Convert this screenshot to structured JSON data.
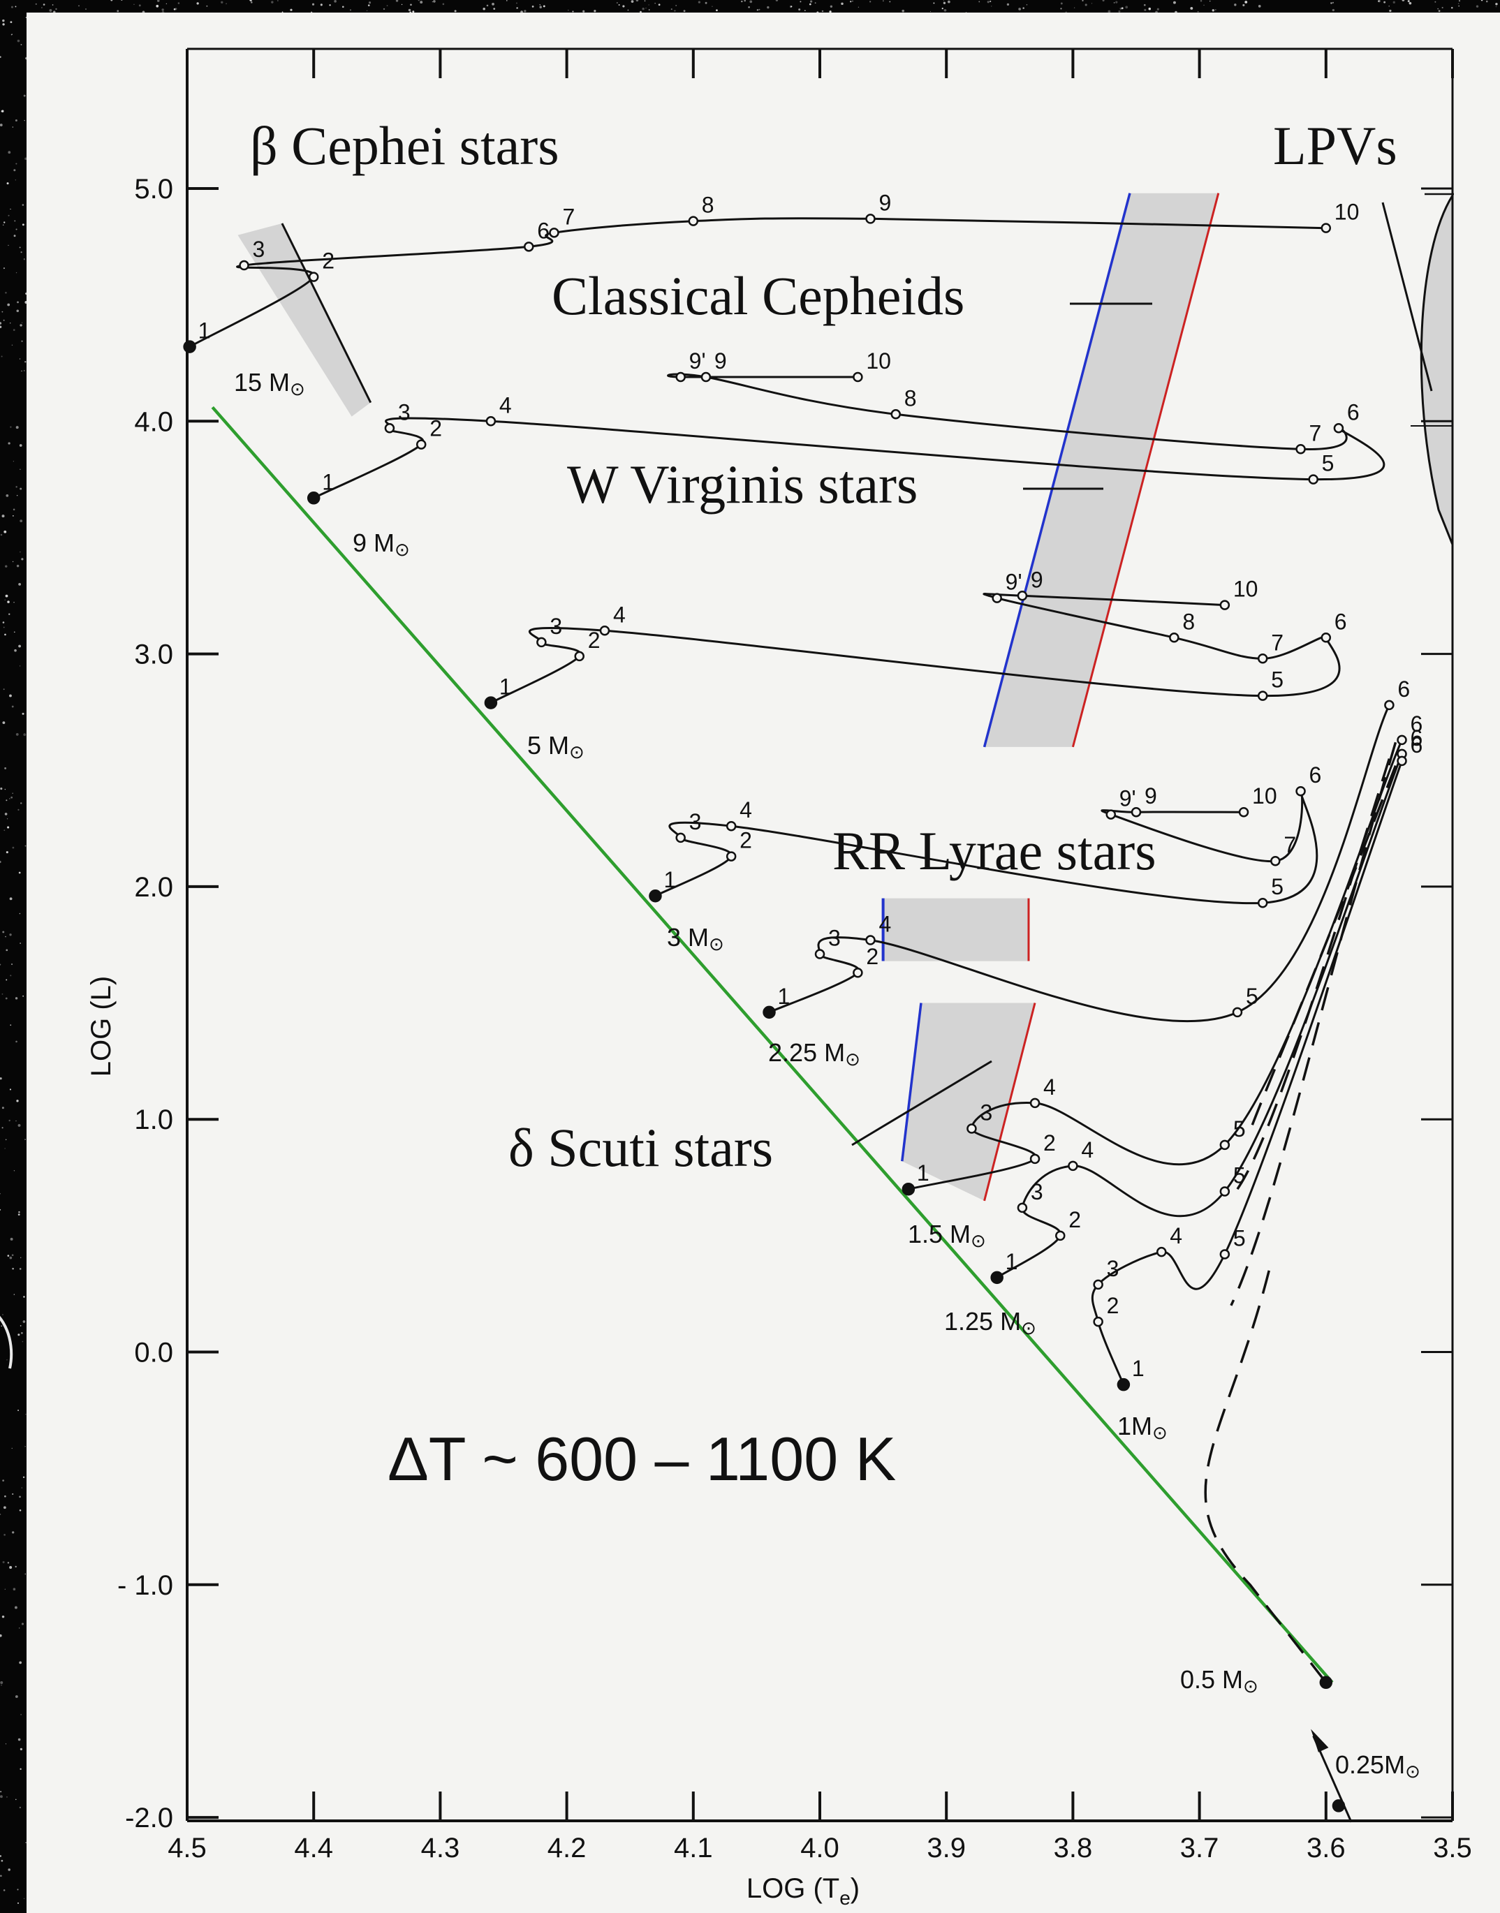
{
  "chart_data": {
    "type": "scatter",
    "xlabel": "LOG (T",
    "xlabel_sub": "e",
    "xlabel_close": ")",
    "ylabel": "LOG (L)",
    "x_reversed": true,
    "xlim": [
      4.5,
      3.5
    ],
    "ylim": [
      -2.0,
      5.0
    ],
    "x_ticks": [
      "4.5",
      "4.4",
      "4.3",
      "4.2",
      "4.1",
      "4.0",
      "3.9",
      "3.8",
      "3.7",
      "3.6",
      "3.5"
    ],
    "y_ticks": [
      "5.0",
      "4.0",
      "3.0",
      "2.0",
      "1.0",
      "0.0",
      "- 1.0",
      "-2.0"
    ],
    "annotation": "ΔT ~ 600 – 1100 K",
    "colors": {
      "zams": "#2e9e2e",
      "blue_edge": "#2233cc",
      "red_edge": "#cc2222",
      "strip": "#d4d4d4",
      "curve": "#111111"
    },
    "regions": [
      {
        "label": "β Cephei stars",
        "polygon": [
          [
            4.46,
            4.8
          ],
          [
            4.425,
            4.85
          ],
          [
            4.355,
            4.08
          ],
          [
            4.37,
            4.02
          ]
        ]
      },
      {
        "label": "Classical Cepheids",
        "polygon": [
          [
            3.87,
            2.6
          ],
          [
            3.755,
            4.98
          ],
          [
            3.685,
            4.98
          ],
          [
            3.8,
            2.6
          ]
        ]
      },
      {
        "label": "RR Lyrae stars",
        "polygon": [
          [
            3.95,
            1.95
          ],
          [
            3.835,
            1.95
          ],
          [
            3.835,
            1.68
          ],
          [
            3.95,
            1.68
          ]
        ]
      },
      {
        "label": "δ Scuti stars",
        "polygon": [
          [
            3.935,
            0.82
          ],
          [
            3.92,
            1.5
          ],
          [
            3.83,
            1.5
          ],
          [
            3.87,
            0.65
          ]
        ]
      },
      {
        "label": "LPVs"
      },
      {
        "label": "W Virginis stars"
      }
    ],
    "series": [
      {
        "name": "15 Mo",
        "points": [
          {
            "x": 4.498,
            "y": 4.32,
            "label": "1"
          },
          {
            "x": 4.4,
            "y": 4.62,
            "label": "2"
          },
          {
            "x": 4.455,
            "y": 4.67,
            "label": "3"
          },
          {
            "x": 4.23,
            "y": 4.75,
            "label": "6"
          },
          {
            "x": 4.21,
            "y": 4.81,
            "label": "7"
          },
          {
            "x": 4.1,
            "y": 4.86,
            "label": "8"
          },
          {
            "x": 3.96,
            "y": 4.87,
            "label": "9"
          },
          {
            "x": 3.6,
            "y": 4.83,
            "label": "10"
          }
        ]
      },
      {
        "name": "9 Mo",
        "points": [
          {
            "x": 4.4,
            "y": 3.67,
            "label": "1"
          },
          {
            "x": 4.315,
            "y": 3.9,
            "label": "2"
          },
          {
            "x": 4.34,
            "y": 3.97,
            "label": "3"
          },
          {
            "x": 4.26,
            "y": 4.0,
            "label": "4"
          },
          {
            "x": 3.61,
            "y": 3.75,
            "label": "5"
          },
          {
            "x": 3.59,
            "y": 3.97,
            "label": "6"
          },
          {
            "x": 3.62,
            "y": 3.88,
            "label": "7"
          },
          {
            "x": 3.94,
            "y": 4.03,
            "label": "8"
          },
          {
            "x": 4.09,
            "y": 4.19,
            "label": "9"
          },
          {
            "x": 4.11,
            "y": 4.19,
            "label": "9'"
          },
          {
            "x": 3.97,
            "y": 4.19,
            "label": "10"
          }
        ]
      },
      {
        "name": "5 Mo",
        "points": [
          {
            "x": 4.26,
            "y": 2.79,
            "label": "1"
          },
          {
            "x": 4.19,
            "y": 2.99,
            "label": "2"
          },
          {
            "x": 4.22,
            "y": 3.05,
            "label": "3"
          },
          {
            "x": 4.17,
            "y": 3.1,
            "label": "4"
          },
          {
            "x": 3.65,
            "y": 2.82,
            "label": "5"
          },
          {
            "x": 3.6,
            "y": 3.07,
            "label": "6"
          },
          {
            "x": 3.65,
            "y": 2.98,
            "label": "7"
          },
          {
            "x": 3.72,
            "y": 3.07,
            "label": "8"
          },
          {
            "x": 3.84,
            "y": 3.25,
            "label": "9"
          },
          {
            "x": 3.86,
            "y": 3.24,
            "label": "9'"
          },
          {
            "x": 3.68,
            "y": 3.21,
            "label": "10"
          }
        ]
      },
      {
        "name": "3 Mo",
        "points": [
          {
            "x": 4.13,
            "y": 1.96,
            "label": "1"
          },
          {
            "x": 4.07,
            "y": 2.13,
            "label": "2"
          },
          {
            "x": 4.11,
            "y": 2.21,
            "label": "3"
          },
          {
            "x": 4.07,
            "y": 2.26,
            "label": "4"
          },
          {
            "x": 3.65,
            "y": 1.93,
            "label": "5"
          },
          {
            "x": 3.62,
            "y": 2.41,
            "label": "6"
          },
          {
            "x": 3.64,
            "y": 2.11,
            "label": "7"
          },
          {
            "x": 3.75,
            "y": 2.32,
            "label": "9"
          },
          {
            "x": 3.77,
            "y": 2.31,
            "label": "9'"
          },
          {
            "x": 3.665,
            "y": 2.32,
            "label": "10"
          }
        ]
      },
      {
        "name": "2.25 Mo",
        "points": [
          {
            "x": 4.04,
            "y": 1.46,
            "label": "1"
          },
          {
            "x": 3.97,
            "y": 1.63,
            "label": "2"
          },
          {
            "x": 4.0,
            "y": 1.71,
            "label": "3"
          },
          {
            "x": 3.96,
            "y": 1.77,
            "label": "4"
          },
          {
            "x": 3.67,
            "y": 1.46,
            "label": "5"
          },
          {
            "x": 3.55,
            "y": 2.78,
            "label": "6"
          }
        ]
      },
      {
        "name": "1.5 Mo",
        "points": [
          {
            "x": 3.93,
            "y": 0.7,
            "label": "1"
          },
          {
            "x": 3.83,
            "y": 0.83,
            "label": "2"
          },
          {
            "x": 3.88,
            "y": 0.96,
            "label": "3"
          },
          {
            "x": 3.83,
            "y": 1.07,
            "label": "4"
          },
          {
            "x": 3.68,
            "y": 0.89,
            "label": "5"
          },
          {
            "x": 3.54,
            "y": 2.63,
            "label": "6"
          }
        ]
      },
      {
        "name": "1.25 Mo",
        "points": [
          {
            "x": 3.86,
            "y": 0.32,
            "label": "1"
          },
          {
            "x": 3.81,
            "y": 0.5,
            "label": "2"
          },
          {
            "x": 3.84,
            "y": 0.62,
            "label": "3"
          },
          {
            "x": 3.8,
            "y": 0.8,
            "label": "4"
          },
          {
            "x": 3.68,
            "y": 0.69,
            "label": "5"
          },
          {
            "x": 3.54,
            "y": 2.57,
            "label": "6"
          }
        ]
      },
      {
        "name": "1 Mo",
        "points": [
          {
            "x": 3.76,
            "y": -0.14,
            "label": "1"
          },
          {
            "x": 3.78,
            "y": 0.13,
            "label": "2"
          },
          {
            "x": 3.78,
            "y": 0.29,
            "label": "3"
          },
          {
            "x": 3.73,
            "y": 0.43,
            "label": "4"
          },
          {
            "x": 3.68,
            "y": 0.42,
            "label": "5"
          },
          {
            "x": 3.54,
            "y": 2.54,
            "label": "6"
          }
        ]
      },
      {
        "name": "0.5 Mo",
        "points": [
          {
            "x": 3.6,
            "y": -1.42
          }
        ]
      },
      {
        "name": "0.25Mo",
        "points": [
          {
            "x": 3.59,
            "y": -1.95
          }
        ]
      }
    ],
    "zams": [
      [
        4.48,
        4.06
      ],
      [
        3.595,
        -1.42
      ]
    ]
  }
}
